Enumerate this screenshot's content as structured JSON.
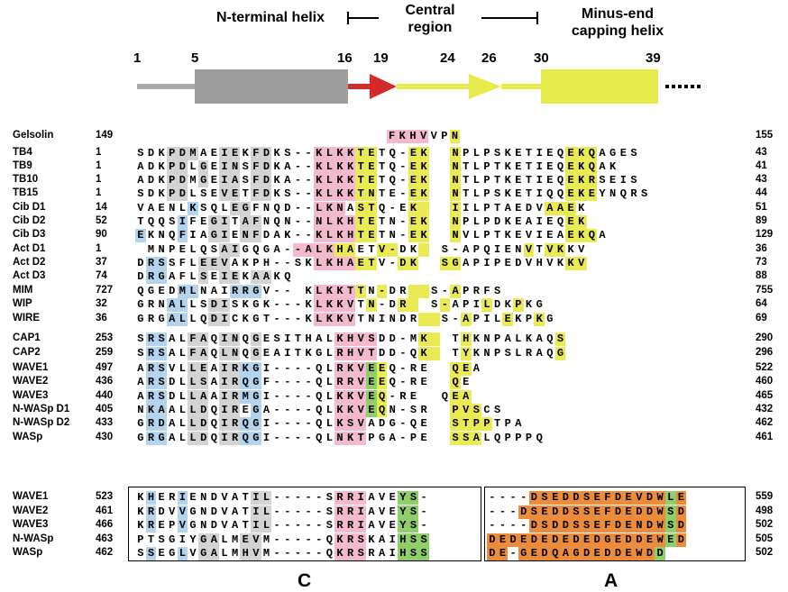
{
  "colors": {
    "gray": "#d3d3d3",
    "blue": "#b3d4ec",
    "pink": "#f2b9cf",
    "yellow": "#eaea55",
    "green": "#8fce68",
    "orange": "#ea8c3c",
    "helix_gray": "#9e9e9e",
    "arrow_red": "#d42a2a",
    "linker_gray": "#a9a9a9",
    "region_yellow": "#e6ea4a"
  },
  "schematic": {
    "labels": {
      "n_terminal": "N-terminal helix",
      "central": "Central\nregion",
      "minus_end": "Minus-end\ncapping helix"
    },
    "positions": [
      "1",
      "5",
      "16",
      "19",
      "24",
      "26",
      "30",
      "39"
    ]
  },
  "alignment": {
    "rows": [
      {
        "name": "Gelsolin",
        "start": "149",
        "seq": "                    FKHVVPN               ",
        "end": "155",
        "color": "                    PPPP  Y               "
      },
      {
        "name": "TB4",
        "start": "1",
        "seq": "SDKPDMAEIEKFDKS--KLKKTETQ-EK  NPLPSKETIEQEKQAGES",
        "end": "43",
        "color": "   GGG  GG GG    PPPPYY   YY  Y          YYY     "
      },
      {
        "name": "TB9",
        "start": "1",
        "seq": "ADKPDLGEINSFDKA--KLKKTETQ-EK  NTLPTKETIEQEKQAK",
        "end": "41",
        "color": "   GG G GG GG    PPPPYY   YY  Y          YYY   "
      },
      {
        "name": "TB10",
        "start": "1",
        "seq": "ADKPDMGEIASFDKA--KLKKTETQ-EK  NTLPTKETIEQEKRSEIS",
        "end": "43",
        "color": "   GG G GG GG    PPPPYY   YY  Y          YYY     "
      },
      {
        "name": "TB15",
        "start": "1",
        "seq": "SDKPDLSEVETFDKS--KLKKTNTE-EK  NTLPSKETIQQEKEYNQRS",
        "end": "44",
        "color": "   GG   GG GG    PPPPYY   YY  Y          YYY      "
      },
      {
        "name": "Cib D1",
        "start": "14",
        "seq": "VAENLKSQLEGFNQD--LKNASTQ-EK   IILPTAEDVAAEK",
        "end": "51",
        "color": "     B   GG      PPP YY   YY  Y        YYY "
      },
      {
        "name": "Cib D2",
        "start": "52",
        "seq": "TQQSIFEGITAFNQN--NLKHTETN-EK  NPLPDKEAIEQEK",
        "end": "89",
        "color": "    B  GG GG     PPPPYY   YY  Y          YYY"
      },
      {
        "name": "Cib D3",
        "start": "90",
        "seq": "EKNQFIAGIENFDAK--KLKHTETN-EK  NVLPTKEVIEAEKQA",
        "end": "129",
        "color": "B   B  GG GG     PPPPYY   YY  Y          YYY  "
      },
      {
        "name": "Act D1",
        "start": "1",
        "seq": " MNPELQSAIGQGA--ALKHAETV-DK  S-APQIENVTVKKV",
        "end": "36",
        "color": "        GG     PPPPYY  YY  Y         Y YY"
      },
      {
        "name": "Act D2",
        "start": "37",
        "seq": "DRSSFLEEVAKPH--SKLKHAETV-DK  SGAPIPEDVHVKKV",
        "end": "73",
        "color": " BB   GGG        PPPPYY  YY  YY          YY "
      },
      {
        "name": "Act D3",
        "start": "74",
        "seq": "DRGAFLSEIEKAAKQ",
        "end": "88",
        "color": " BB   G GG GG   "
      },
      {
        "name": "MIM",
        "start": "727",
        "seq": "QGEDMLNAIRRGV-- KLKKTTN-DR  S-APRFS",
        "end": "755",
        "color": "    BB   BBB     PPPPY Y  YY  Y     "
      },
      {
        "name": "WIP",
        "start": "32",
        "seq": "GRNALLSDISKGK---KLKKVTN-DR  S-APILDKPKG",
        "end": "64",
        "color": "   BB  GG        PPPP Y  YY  Y   Y  Y   "
      },
      {
        "name": "WIRE",
        "start": "36",
        "seq": "GRGALLQDICKGT---KLKKVTNINDR  S-APILEKPKG",
        "end": "69",
        "color": "   BB  GG        PPPP      YY  Y   Y  Y   "
      },
      {
        "name": "CAP1",
        "start": "253",
        "seq": "SRSALFAQINQGESITHALKHVSDD-MK  THKNPALKAQS",
        "end": "290",
        "color": " BB  GG GG G       PPPP    YY  Y        YY"
      },
      {
        "name": "CAP2",
        "start": "259",
        "seq": "SRSALFAQLNQGEAITKGLRHVTDD-QK  TYKNPSLRAQG",
        "end": "296",
        "color": " BB  GG GG G       PPPP    YY  Y        YY"
      },
      {
        "name": "WAVE1",
        "start": "497",
        "seq": "ARSVLLEAIRKGI----QLRKVEEQ-RE  QEA",
        "end": "522",
        "color": " BB  GG GGBB       PPPGY      YY "
      },
      {
        "name": "WAVE2",
        "start": "436",
        "seq": "ARSDLLSAIRQGF----QLRRVEEQ-RE  QE",
        "end": "460",
        "color": " BB  GG GGBB       PPPGY      Y "
      },
      {
        "name": "WAVE3",
        "start": "440",
        "seq": "ARSDLLAAIRMGI----QLKKVEQ-RE  QEA",
        "end": "465",
        "color": " BB  GG GGBB       PPPGY      YY "
      },
      {
        "name": "N-WASp D1",
        "start": "405",
        "seq": "NKAALLDQIREGA----QLKKVEQN-SR  PVSCS",
        "end": "432",
        "color": " BB  GG GG B       PPPGY      YYY   "
      },
      {
        "name": "N-WASp D2",
        "start": "433",
        "seq": "GRDALLDQIRQGI----QLKSVADG-QE  STPPTPA",
        "end": "462",
        "color": " BB  GG GGBB       PPP        YYYY    "
      },
      {
        "name": "WASp",
        "start": "430",
        "seq": "GRGALLDQIRQGI----QLNKTPGA-PE  SSALQPPPQ",
        "end": "461",
        "color": " BB  GG GGBB       PPP        YYY       "
      }
    ],
    "bottom_rows": [
      {
        "name": "WAVE1",
        "start": "523",
        "seq_c": "KHERIENDVATIL-----SRRIAVEYS-",
        "seq_a": "----DSEDDSEFDEVDWLE",
        "end": "559",
        "color_c": " B  B      GG      PPP   GG ",
        "color_a": "    OOOOOOOOOOOOOGOO"
      },
      {
        "name": "WAVE2",
        "start": "461",
        "seq_c": "KRDVVGNDVATIL-----SRRIAVEYS-",
        "seq_a": "---DSEDDSSEFDEDDWSD",
        "end": "498",
        "color_c": " B  B      GG      PPP   GG ",
        "color_a": "   OOOOOOOOOOOOOOGOO"
      },
      {
        "name": "WAVE3",
        "start": "466",
        "seq_c": "KREPVGNDVATIL-----SRRIAVEYS-",
        "seq_a": "----DSDDSSEFDENDWSD",
        "end": "502",
        "color_c": " B  B      GG      PPP   GG ",
        "color_a": "    OOOOOOOOOOOOOGOO"
      },
      {
        "name": "N-WASp",
        "start": "463",
        "seq_c": "PTSGIYGALMEVM-----QKRSKAIHSS",
        "seq_a": "DEDEDEDEDEDGEDDEWED",
        "end": "505",
        "color_c": "      GG  GG       PPP   GGG",
        "color_a": "OOOOOOOOOOOOOOOOOGOO"
      },
      {
        "name": "WASp",
        "start": "462",
        "seq_c": "SSEGLVGALMHVM-----QKRSRAIHSS",
        "seq_a": "DE-GEDQAGDEDDEWDD",
        "end": "502",
        "color_c": " B  B GG  GG       PPP   GGG",
        "color_a": "OO OOOOOOOOOOOOOGOO"
      }
    ],
    "region_labels": {
      "c": "C",
      "a": "A"
    }
  }
}
